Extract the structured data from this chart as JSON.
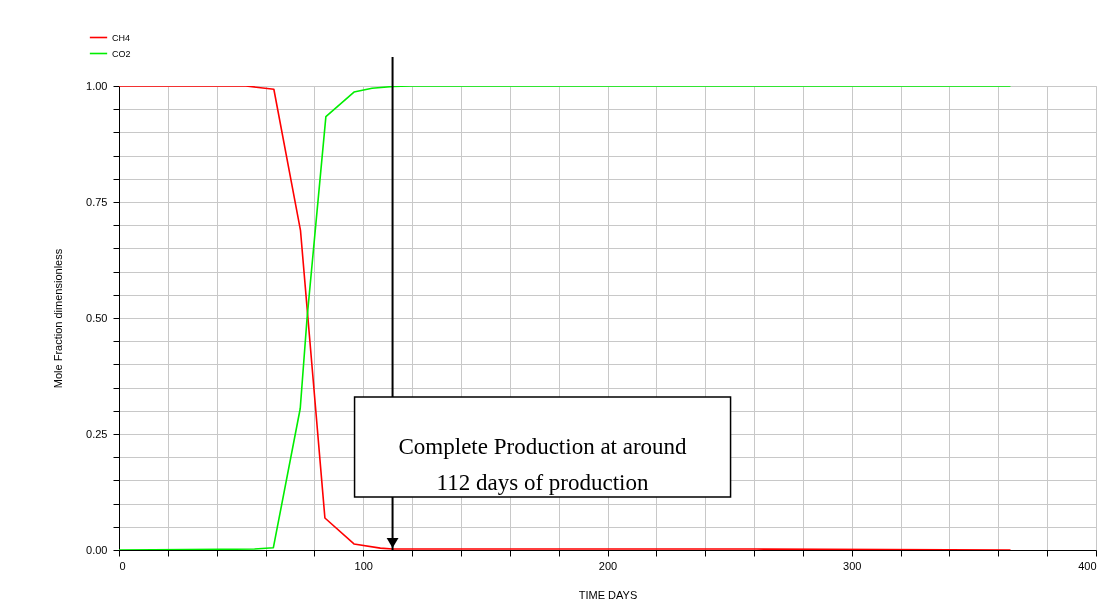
{
  "chart_data": {
    "type": "line",
    "xlabel": "TIME   DAYS",
    "ylabel": "Mole Fraction  dimensionless",
    "xlim": [
      0,
      400
    ],
    "xticks": [
      0,
      {
        "value": 20,
        "label": null
      },
      {
        "value": 40,
        "label": null
      },
      {
        "value": 60,
        "label": null
      },
      {
        "value": 80,
        "label": null
      },
      100,
      {
        "value": 120,
        "label": null
      },
      {
        "value": 140,
        "label": null
      },
      {
        "value": 160,
        "label": null
      },
      {
        "value": 180,
        "label": null
      },
      200,
      {
        "value": 220,
        "label": null
      },
      {
        "value": 240,
        "label": null
      },
      {
        "value": 260,
        "label": null
      },
      {
        "value": 280,
        "label": null
      },
      300,
      {
        "value": 320,
        "label": null
      },
      {
        "value": 340,
        "label": null
      },
      {
        "value": 360,
        "label": null
      },
      {
        "value": 380,
        "label": null
      },
      400
    ],
    "ylim": [
      0,
      1
    ],
    "yticks": [
      {
        "value": 0,
        "label": "0.00"
      },
      {
        "value": 0.05,
        "label": null
      },
      {
        "value": 0.1,
        "label": null
      },
      {
        "value": 0.15,
        "label": null
      },
      {
        "value": 0.2,
        "label": null
      },
      {
        "value": 0.25,
        "label": "0.25"
      },
      {
        "value": 0.3,
        "label": null
      },
      {
        "value": 0.35,
        "label": null
      },
      {
        "value": 0.4,
        "label": null
      },
      {
        "value": 0.45,
        "label": null
      },
      {
        "value": 0.5,
        "label": "0.50"
      },
      {
        "value": 0.55,
        "label": null
      },
      {
        "value": 0.6,
        "label": null
      },
      {
        "value": 0.65,
        "label": null
      },
      {
        "value": 0.7,
        "label": null
      },
      {
        "value": 0.75,
        "label": "0.75"
      },
      {
        "value": 0.8,
        "label": null
      },
      {
        "value": 0.85,
        "label": null
      },
      {
        "value": 0.9,
        "label": null
      },
      {
        "value": 0.95,
        "label": null
      },
      {
        "value": 1,
        "label": "1.00"
      }
    ],
    "grid": true,
    "legend": "top left",
    "series": [
      {
        "name": "CH4",
        "color": "#ff0000",
        "x": [
          0,
          52,
          63.4,
          74.3,
          84.3,
          96.2,
          107,
          112,
          261,
          365
        ],
        "values": [
          1,
          1,
          0.993,
          0.689,
          0.069,
          0.013,
          0.004,
          0.002,
          0.002,
          0
        ]
      },
      {
        "name": "CO2",
        "color": "#00ee00",
        "x": [
          0,
          55.5,
          63.2,
          74.2,
          77,
          84.7,
          96.2,
          103.6,
          112.2,
          119,
          365
        ],
        "values": [
          0,
          0.002,
          0.005,
          0.305,
          0.5,
          0.934,
          0.987,
          0.995,
          0.999,
          1,
          1
        ]
      }
    ],
    "ref_lines": [
      {
        "axis": "x",
        "value": 112,
        "label": "Complete Production at around\n112 days of production",
        "color": "#000000"
      }
    ]
  }
}
